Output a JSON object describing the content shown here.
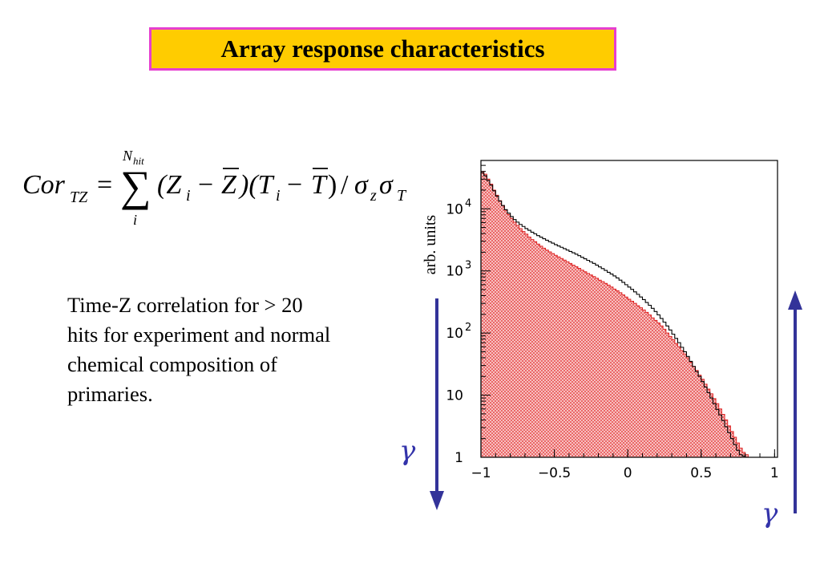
{
  "slide": {
    "title": "Array response characteristics",
    "description_lines": [
      "Time-Z correlation for > 20",
      "hits for experiment and normal",
      "chemical composition of",
      "primaries."
    ],
    "formula": {
      "lhs_main": "Cor",
      "lhs_sub": "TZ",
      "equals": "=",
      "sum_symbol": "∑",
      "sum_upper": "N",
      "sum_upper_sub": "hit",
      "sum_lower": "i",
      "body": "(Z",
      "body_sub_i": "i",
      "minus": "−",
      "zbar": "Z",
      "mid": ")(T",
      "tbar": "T",
      "close": ")",
      "slash": "/",
      "sigma": "σ",
      "sigma_z_sub": "z",
      "sigma_t_sub": "T"
    },
    "arrow_down_label": "γ",
    "arrow_up_label": "γ",
    "arrow_color": "#333399"
  },
  "chart_data": {
    "type": "histogram",
    "ylabel": "arb. units",
    "xlabel": "",
    "title": "",
    "x_ticks": [
      "−1",
      "−0.5",
      "0",
      "0.5",
      "1"
    ],
    "x_tick_values": [
      -1,
      -0.5,
      0,
      0.5,
      1
    ],
    "y_ticks": [
      "1",
      "10",
      "10",
      "10",
      "10"
    ],
    "y_tick_exponents": [
      "",
      "",
      "2",
      "3",
      "4"
    ],
    "y_tick_values": [
      1,
      10,
      100,
      1000,
      10000
    ],
    "xlim": [
      -1,
      1.02
    ],
    "ylim": [
      1,
      60000
    ],
    "y_scale": "log",
    "grid": false,
    "legend": "none",
    "bin_width": 0.02,
    "x": [
      -0.99,
      -0.97,
      -0.95,
      -0.93,
      -0.91,
      -0.89,
      -0.87,
      -0.85,
      -0.83,
      -0.81,
      -0.79,
      -0.77,
      -0.75,
      -0.73,
      -0.71,
      -0.69,
      -0.67,
      -0.65,
      -0.63,
      -0.61,
      -0.59,
      -0.57,
      -0.55,
      -0.53,
      -0.51,
      -0.49,
      -0.47,
      -0.45,
      -0.43,
      -0.41,
      -0.39,
      -0.37,
      -0.35,
      -0.33,
      -0.31,
      -0.29,
      -0.27,
      -0.25,
      -0.23,
      -0.21,
      -0.19,
      -0.17,
      -0.15,
      -0.13,
      -0.11,
      -0.09,
      -0.07,
      -0.05,
      -0.03,
      -0.01,
      0.01,
      0.03,
      0.05,
      0.07,
      0.09,
      0.11,
      0.13,
      0.15,
      0.17,
      0.19,
      0.21,
      0.23,
      0.25,
      0.27,
      0.29,
      0.31,
      0.33,
      0.35,
      0.37,
      0.39,
      0.41,
      0.43,
      0.45,
      0.47,
      0.49,
      0.51,
      0.53,
      0.55,
      0.57,
      0.59,
      0.61,
      0.63,
      0.65,
      0.67,
      0.69,
      0.71,
      0.73,
      0.75,
      0.77,
      0.79,
      0.81,
      0.83,
      0.85,
      0.87,
      0.89,
      0.91,
      0.93,
      0.95,
      0.97,
      0.99
    ],
    "series": [
      {
        "name": "",
        "style": "filled-hatched",
        "color": "#dd2222",
        "values": [
          40000,
          36000,
          30000,
          25000,
          20000,
          16500,
          13500,
          11300,
          9500,
          8100,
          7000,
          6100,
          5400,
          4800,
          4300,
          3900,
          3500,
          3200,
          2950,
          2700,
          2500,
          2320,
          2160,
          2020,
          1900,
          1780,
          1680,
          1580,
          1490,
          1400,
          1320,
          1240,
          1170,
          1100,
          1030,
          970,
          910,
          860,
          810,
          760,
          710,
          670,
          630,
          590,
          550,
          510,
          480,
          445,
          410,
          380,
          350,
          325,
          300,
          275,
          255,
          235,
          215,
          195,
          175,
          160,
          145,
          130,
          115,
          100,
          88,
          78,
          68,
          60,
          52,
          46,
          40,
          34,
          29,
          25,
          21,
          18,
          15,
          12.5,
          10.5,
          8.8,
          7.3,
          6.0,
          4.9,
          4.0,
          3.2,
          2.6,
          2.1,
          1.7,
          1.4,
          1.2,
          1.1,
          1,
          1,
          1,
          1,
          1,
          1,
          1,
          1,
          1
        ]
      },
      {
        "name": "",
        "style": "outline",
        "color": "#000000",
        "values": [
          38000,
          34000,
          28500,
          24000,
          19500,
          16000,
          13300,
          11300,
          9700,
          8500,
          7500,
          6700,
          6100,
          5600,
          5200,
          4800,
          4500,
          4200,
          3950,
          3700,
          3500,
          3300,
          3120,
          2950,
          2800,
          2650,
          2520,
          2400,
          2280,
          2170,
          2060,
          1960,
          1860,
          1760,
          1660,
          1570,
          1480,
          1400,
          1320,
          1240,
          1160,
          1090,
          1020,
          950,
          890,
          830,
          770,
          710,
          655,
          600,
          550,
          505,
          460,
          420,
          380,
          345,
          310,
          280,
          250,
          222,
          196,
          172,
          150,
          130,
          112,
          96,
          82,
          70,
          59,
          50,
          42,
          35,
          29,
          24,
          20,
          16.5,
          13.5,
          11,
          9,
          7.3,
          5.9,
          4.8,
          3.9,
          3.1,
          2.5,
          2.0,
          1.6,
          1.3,
          1.1,
          1.05,
          1,
          1,
          1,
          1,
          1,
          1,
          1,
          1,
          1,
          1
        ]
      }
    ]
  }
}
